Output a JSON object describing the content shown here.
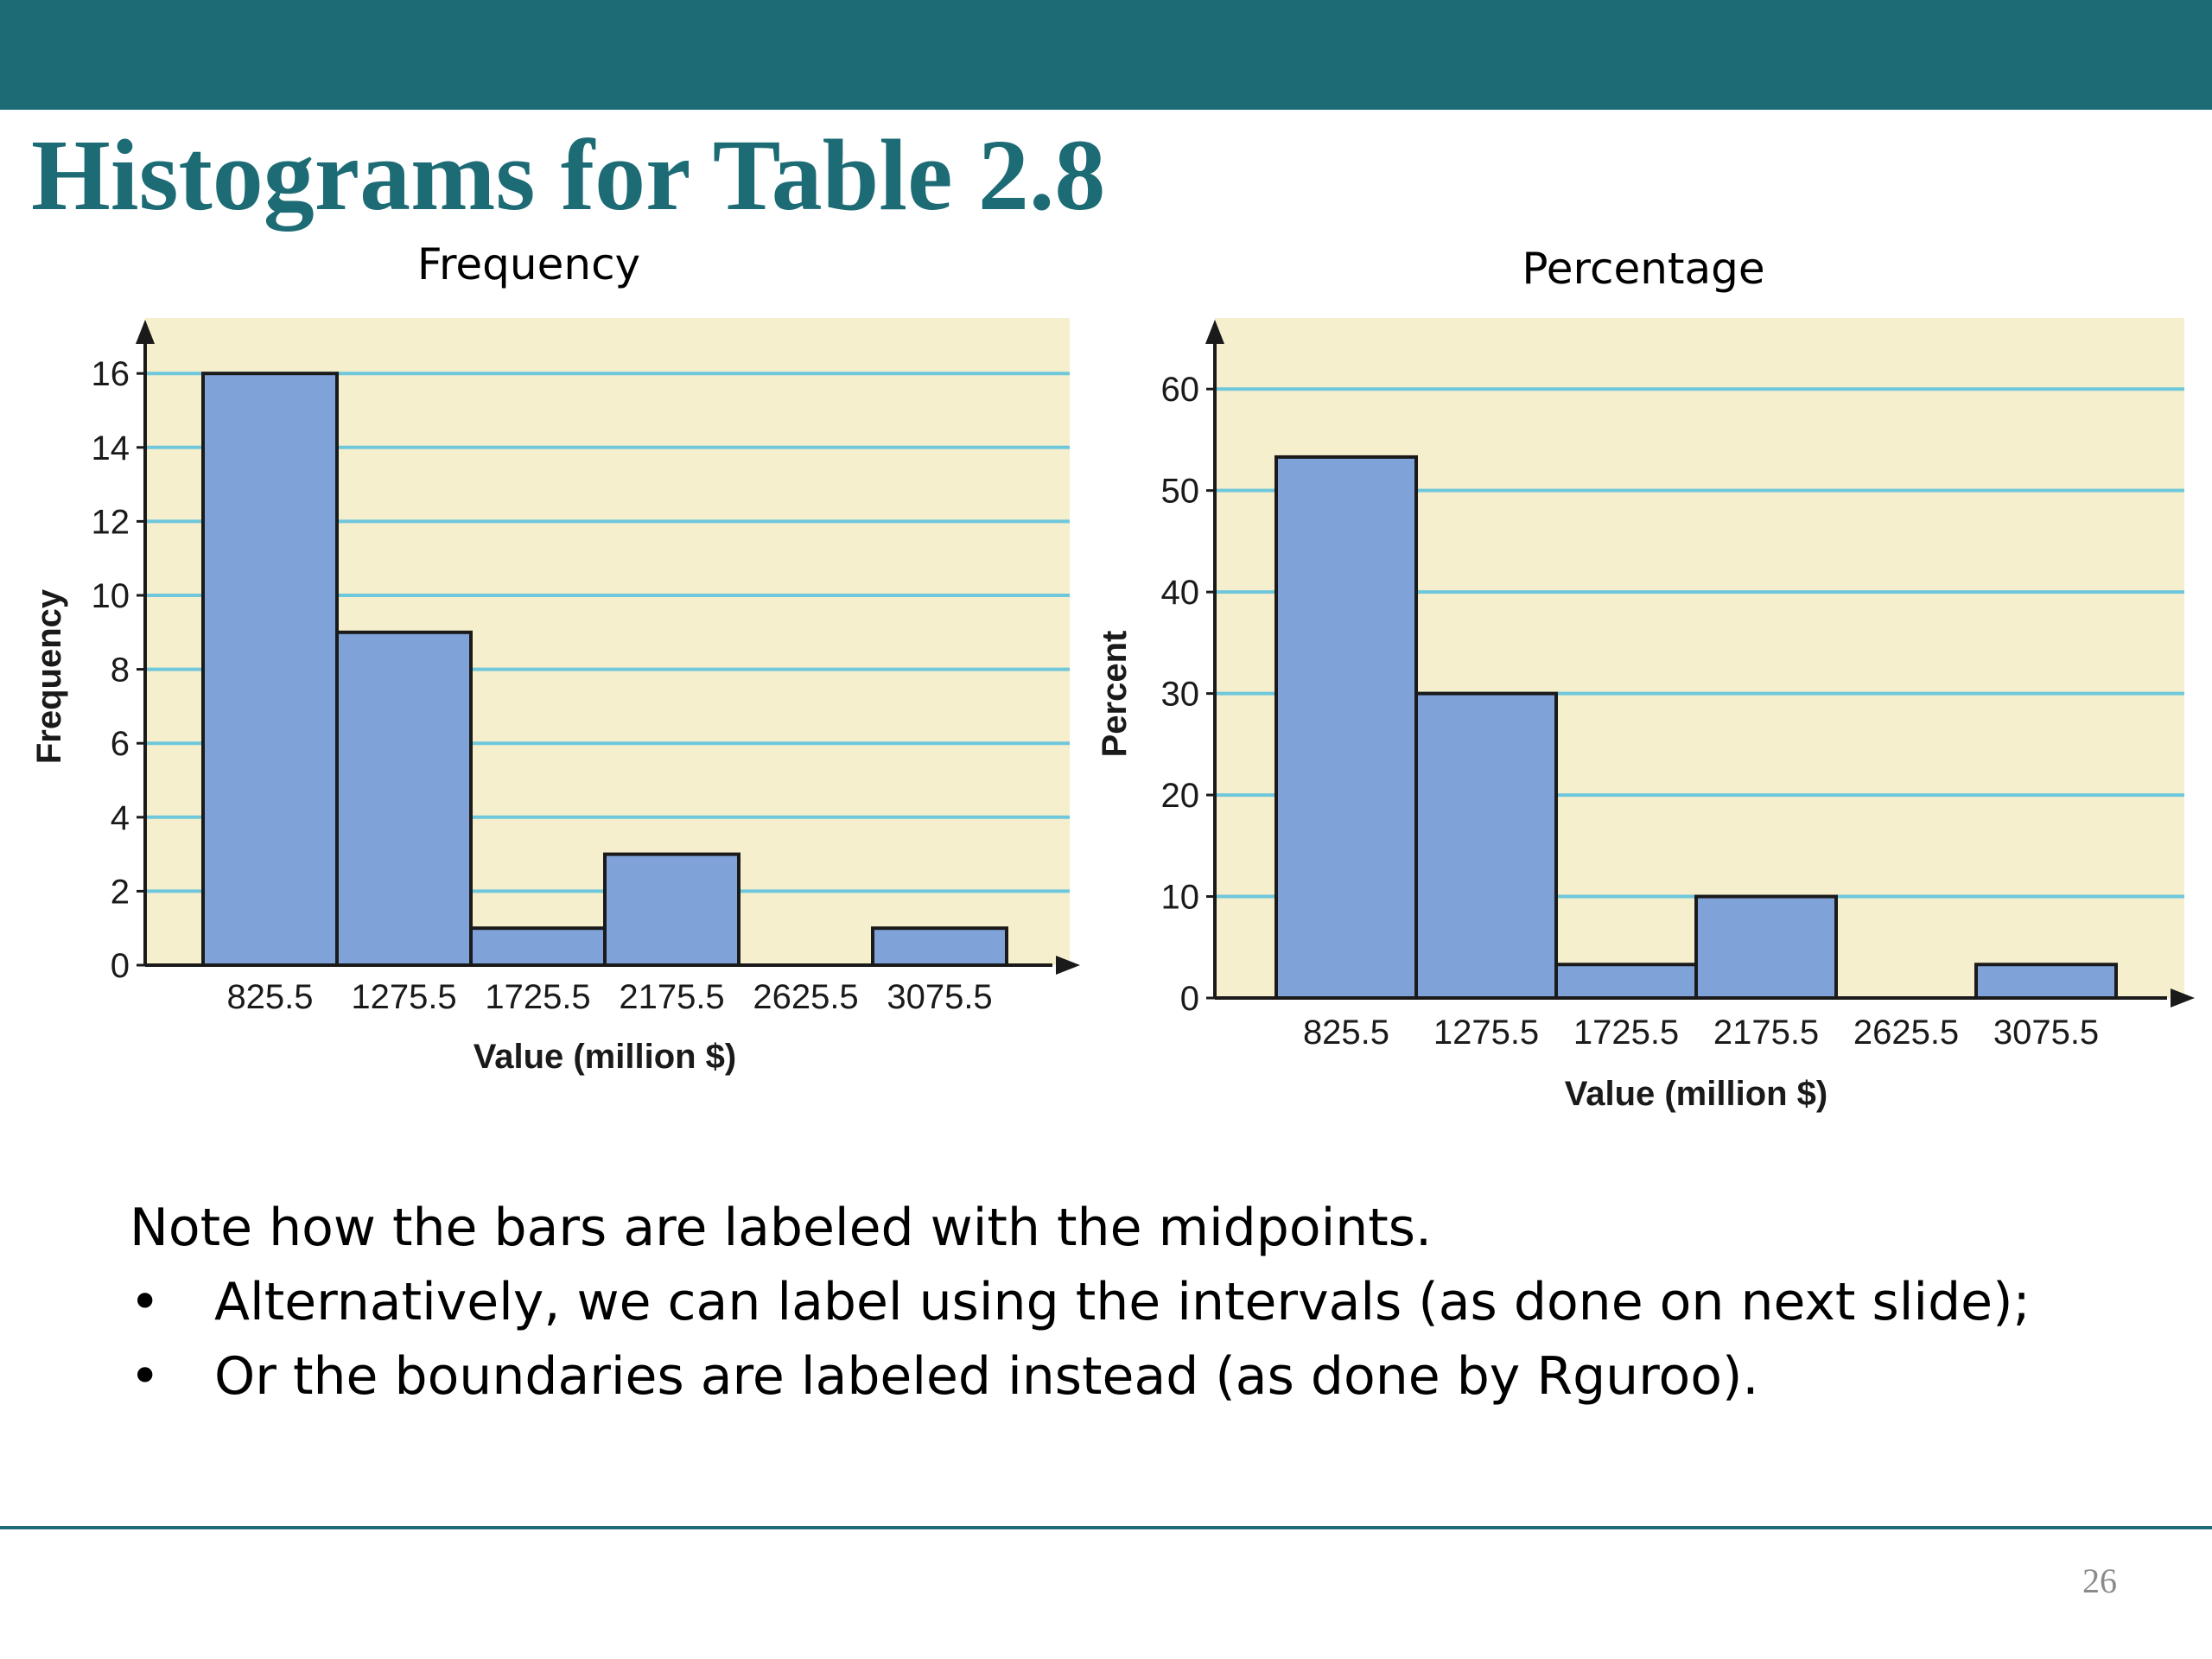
{
  "slide": {
    "title": "Histograms for Table 2.8",
    "notes": {
      "main": "Note how the bars are labeled with the midpoints.",
      "bullet_symbol": "•",
      "bullets": [
        "Alternatively, we can label using the intervals (as done on next slide);",
        "Or the boundaries are labeled instead (as done by Rguroo)."
      ]
    },
    "page_number": "26"
  },
  "colors": {
    "header_band": "#1c6b75",
    "title": "#1c6b75",
    "plot_background": "#f6efcd",
    "gridline": "#6fc7dc",
    "bar_fill": "#7fa3d8",
    "bar_stroke": "#1a1a1a"
  },
  "chart_data": [
    {
      "type": "bar",
      "title": "Frequency",
      "xlabel": "Value (million $)",
      "ylabel": "Frequency",
      "categories": [
        "825.5",
        "1275.5",
        "1725.5",
        "2175.5",
        "2625.5",
        "3075.5"
      ],
      "values": [
        16,
        9,
        1,
        3,
        0,
        1
      ],
      "ylim": [
        0,
        17.5
      ],
      "yticks": [
        0,
        2,
        4,
        6,
        8,
        10,
        12,
        14,
        16
      ],
      "grid": true,
      "legend": "none"
    },
    {
      "type": "bar",
      "title": "Percentage",
      "xlabel": "Value (million $)",
      "ylabel": "Percent",
      "categories": [
        "825.5",
        "1275.5",
        "1725.5",
        "2175.5",
        "2625.5",
        "3075.5"
      ],
      "values": [
        53.3,
        30,
        3.3,
        10,
        0,
        3.3
      ],
      "ylim": [
        0,
        67
      ],
      "yticks": [
        0,
        10,
        20,
        30,
        40,
        50,
        60
      ],
      "grid": true,
      "legend": "none"
    }
  ]
}
